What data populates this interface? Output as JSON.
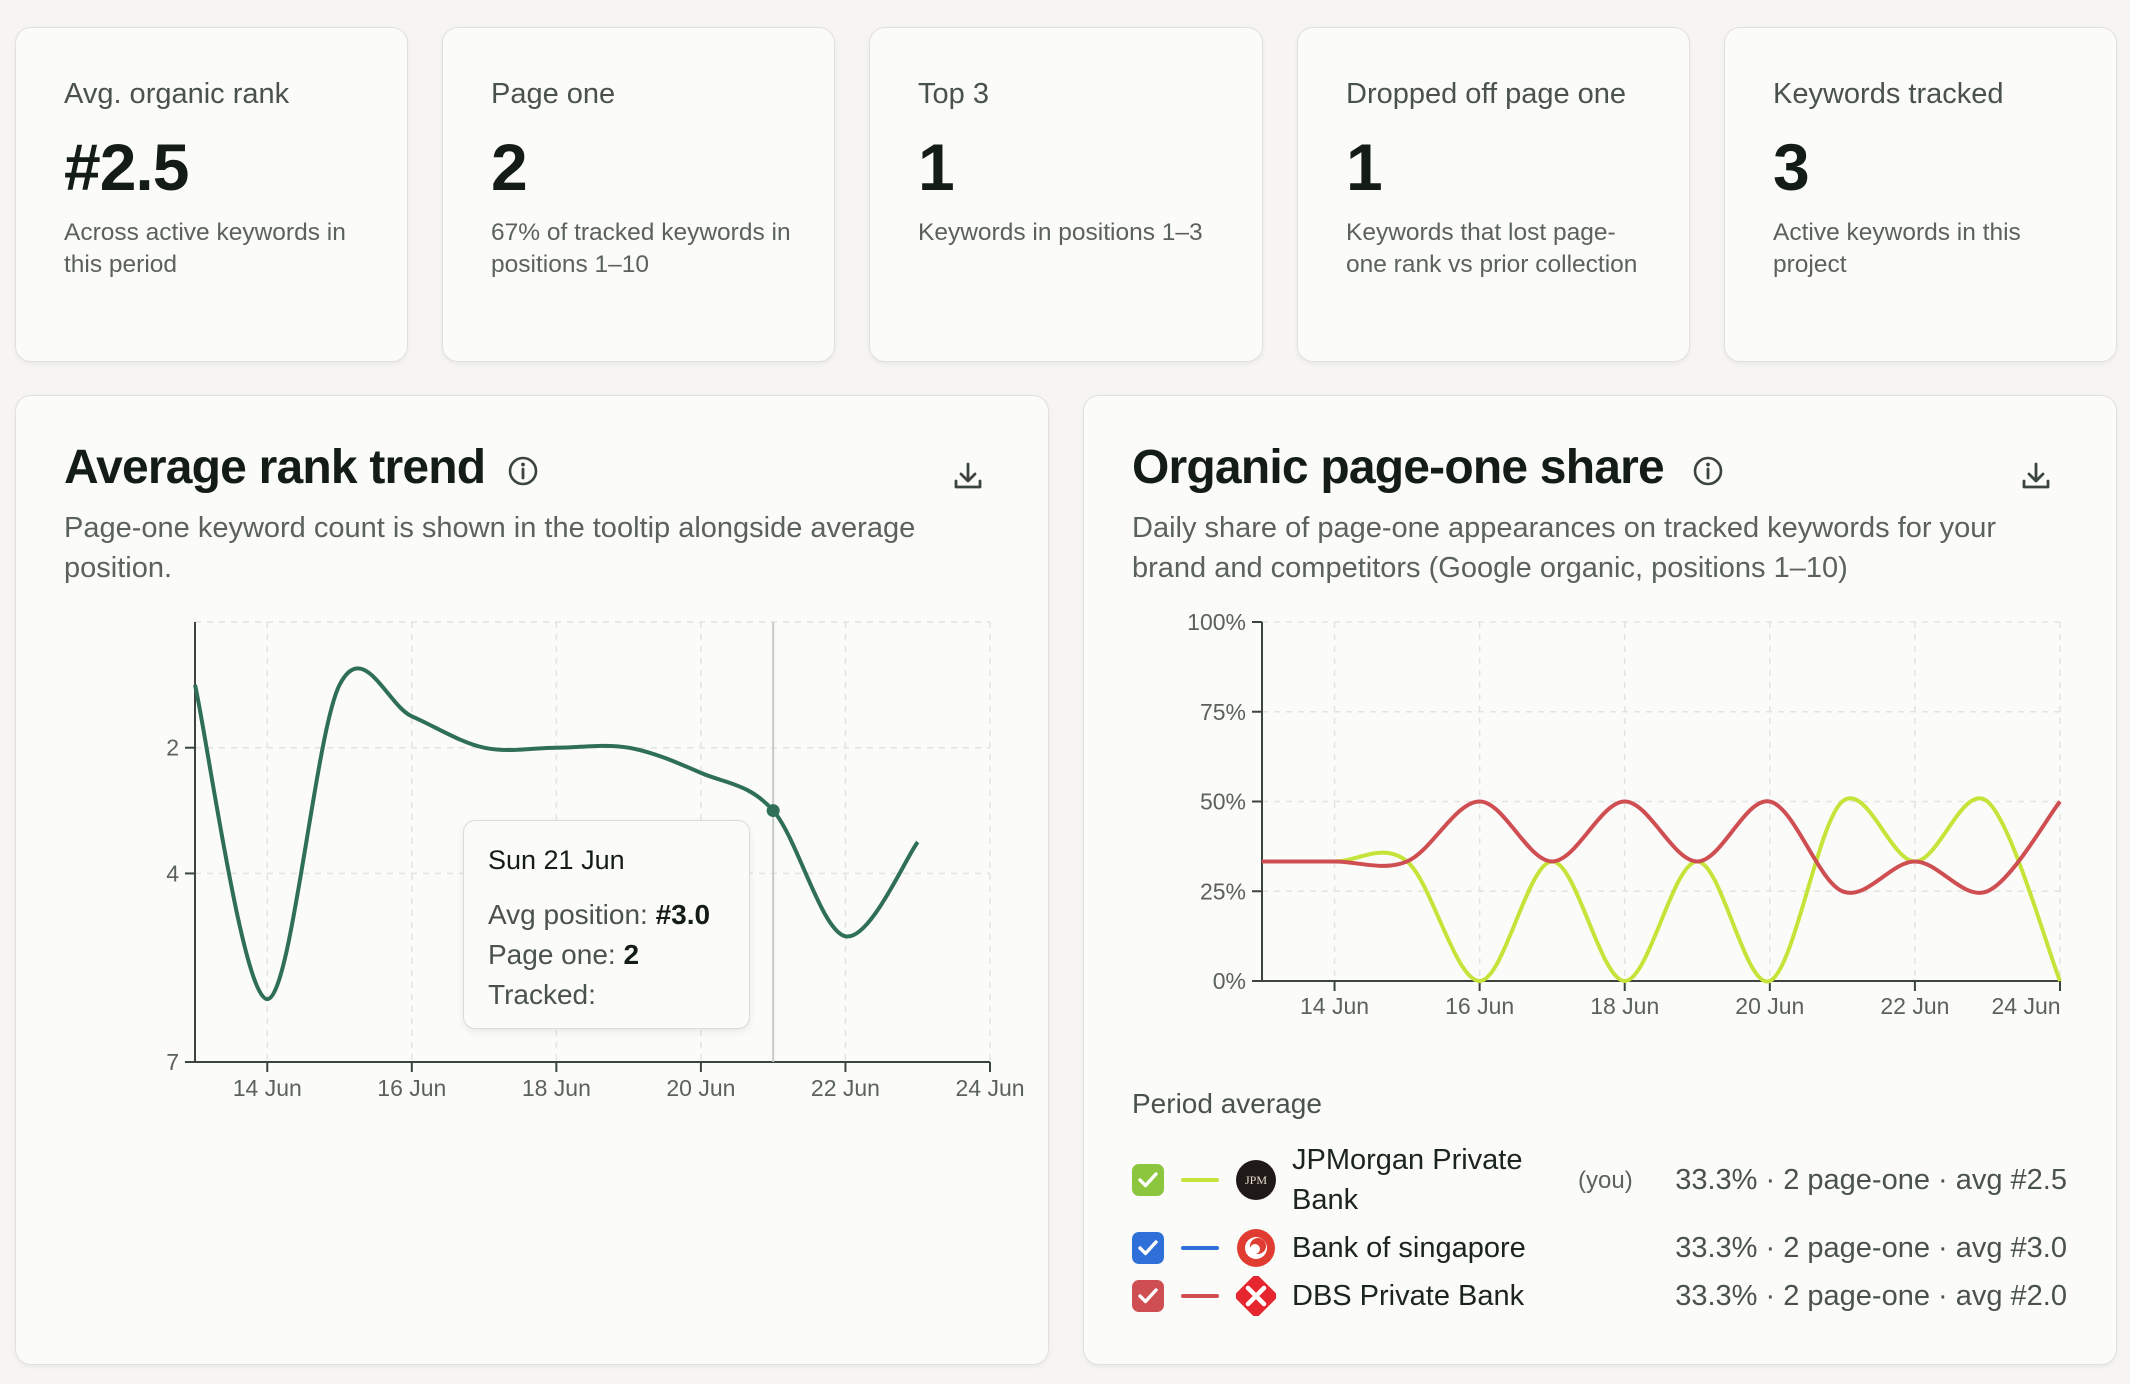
{
  "kpis": [
    {
      "label": "Avg. organic rank",
      "value": "#2.5",
      "sub": "Across active keywords in this period"
    },
    {
      "label": "Page one",
      "value": "2",
      "sub": "67% of tracked keywords in positions 1–10"
    },
    {
      "label": "Top 3",
      "value": "1",
      "sub": "Keywords in positions 1–3"
    },
    {
      "label": "Dropped off page one",
      "value": "1",
      "sub": "Keywords that lost page-one rank vs prior collection"
    },
    {
      "label": "Keywords tracked",
      "value": "3",
      "sub": "Active keywords in this project"
    }
  ],
  "rank_panel": {
    "title": "Average rank trend",
    "description": "Page-one keyword count is shown in the tooltip alongside average position.",
    "info_icon": "info-icon",
    "download_icon": "download-icon",
    "tooltip": {
      "date": "Sun 21 Jun",
      "avg_label": "Avg position:",
      "avg_value": "#3.0",
      "page_one_label": "Page one:",
      "page_one_value": "2",
      "tracked_label": "Tracked:",
      "tracked_value": ""
    }
  },
  "share_panel": {
    "title": "Organic page-one share",
    "description": "Daily share of page-one appearances on tracked keywords for your brand and competitors (Google organic, positions 1–10)",
    "info_icon": "info-icon",
    "download_icon": "download-icon",
    "legend_heading": "Period average",
    "legend": [
      {
        "name": "JPMorgan Private Bank",
        "you": "(you)",
        "stat": "33.3% · 2 page-one · avg #2.5",
        "color": "#c5e43a",
        "check_color": "#8cc63f",
        "logo": "jpm-logo-icon",
        "logo_text": "JPM"
      },
      {
        "name": "Bank of singapore",
        "you": "",
        "stat": "33.3% · 2 page-one · avg #3.0",
        "color": "#2e6fd8",
        "check_color": "#2e6fd8",
        "logo": "bank-of-singapore-logo-icon"
      },
      {
        "name": "DBS Private Bank",
        "you": "",
        "stat": "33.3% · 2 page-one · avg #2.0",
        "color": "#cf4e52",
        "check_color": "#cf4e52",
        "logo": "dbs-logo-icon"
      }
    ]
  },
  "chart_data": [
    {
      "type": "line",
      "title": "Average rank trend",
      "x_dates": [
        "13 Jun",
        "14 Jun",
        "15 Jun",
        "16 Jun",
        "17 Jun",
        "18 Jun",
        "19 Jun",
        "20 Jun",
        "21 Jun",
        "22 Jun",
        "23 Jun"
      ],
      "series": [
        {
          "values": [
            1,
            6,
            1,
            1.5,
            2,
            2,
            2,
            2.4,
            3.0,
            5,
            3.5
          ],
          "color": "#2f6f58"
        }
      ],
      "y_reversed": true,
      "ylim": [
        0,
        7
      ],
      "yticks": [
        "2",
        "4",
        "7"
      ],
      "xticks": [
        "14 Jun",
        "16 Jun",
        "18 Jun",
        "20 Jun",
        "22 Jun",
        "24 Jun"
      ],
      "xlim": [
        "13 Jun",
        "24 Jun"
      ],
      "highlight": {
        "date": "21 Jun",
        "value": 3.0
      },
      "grid": true
    },
    {
      "type": "line",
      "title": "Organic page-one share",
      "x_dates": [
        "13 Jun",
        "14 Jun",
        "15 Jun",
        "16 Jun",
        "17 Jun",
        "18 Jun",
        "19 Jun",
        "20 Jun",
        "21 Jun",
        "22 Jun",
        "23 Jun",
        "24 Jun"
      ],
      "series": [
        {
          "name": "JPMorgan Private Bank",
          "color": "#c5e43a",
          "values": [
            33.3,
            33.3,
            33.3,
            0,
            33.3,
            0,
            33.3,
            0,
            50,
            33.3,
            50,
            0
          ]
        },
        {
          "name": "DBS Private Bank",
          "color": "#cf4e52",
          "values": [
            33.3,
            33.3,
            33.3,
            50,
            33.3,
            50,
            33.3,
            50,
            25,
            33.3,
            25,
            50
          ]
        }
      ],
      "ylim": [
        0,
        100
      ],
      "yticks": [
        "0%",
        "25%",
        "50%",
        "75%",
        "100%"
      ],
      "xticks": [
        "14 Jun",
        "16 Jun",
        "18 Jun",
        "20 Jun",
        "22 Jun",
        "24 Jun"
      ],
      "grid": true
    }
  ]
}
